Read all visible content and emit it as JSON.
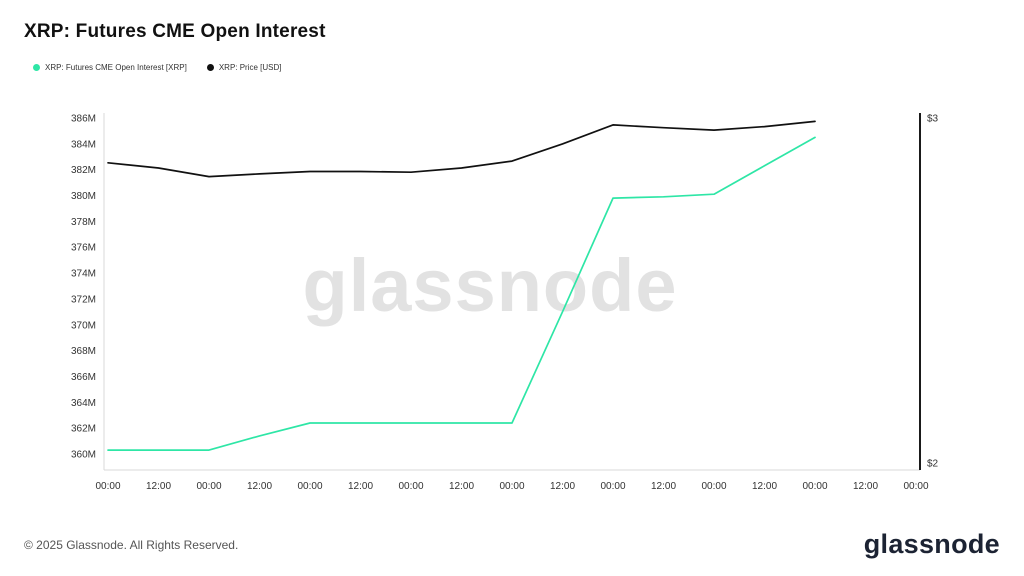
{
  "title": "XRP: Futures CME Open Interest",
  "legend": [
    {
      "label": "XRP: Futures CME Open Interest [XRP]",
      "color": "#2ee6a6"
    },
    {
      "label": "XRP: Price [USD]",
      "color": "#111111"
    }
  ],
  "watermark": "glassnode",
  "footer": {
    "copyright": "© 2025 Glassnode. All Rights Reserved.",
    "brand": "glassnode"
  },
  "chart_data": {
    "type": "line",
    "title": "XRP: Futures CME Open Interest",
    "grid": false,
    "legend_position": "top-left",
    "x_tick_labels": [
      "00:00",
      "12:00",
      "00:00",
      "12:00",
      "00:00",
      "12:00",
      "00:00",
      "12:00",
      "00:00",
      "12:00",
      "00:00",
      "12:00",
      "00:00",
      "12:00",
      "00:00",
      "12:00",
      "00:00"
    ],
    "left_axis": {
      "unit": "M",
      "tick_values": [
        386,
        384,
        382,
        380,
        378,
        376,
        374,
        372,
        370,
        368,
        366,
        364,
        362,
        360
      ],
      "min": 360,
      "max": 386
    },
    "right_axis": {
      "tick_labels": [
        "$3",
        "$2"
      ],
      "min": 2,
      "max": 3
    },
    "series": [
      {
        "name": "XRP: Futures CME Open Interest [XRP]",
        "axis": "left",
        "color": "#2ee6a6",
        "x": [
          0,
          1,
          2,
          3,
          4,
          5,
          6,
          7,
          8,
          9,
          10,
          11,
          12,
          13,
          14
        ],
        "values": [
          360.3,
          360.3,
          360.3,
          361.4,
          362.4,
          362.4,
          362.4,
          362.4,
          362.4,
          371.0,
          379.8,
          379.9,
          380.1,
          382.3,
          384.5
        ]
      },
      {
        "name": "XRP: Price [USD]",
        "axis": "right",
        "color": "#111111",
        "x": [
          0,
          1,
          2,
          3,
          4,
          5,
          6,
          7,
          8,
          9,
          10,
          11,
          12,
          13,
          14
        ],
        "values": [
          2.87,
          2.855,
          2.83,
          2.838,
          2.845,
          2.845,
          2.843,
          2.855,
          2.875,
          2.925,
          2.98,
          2.972,
          2.965,
          2.975,
          2.99
        ]
      }
    ]
  }
}
